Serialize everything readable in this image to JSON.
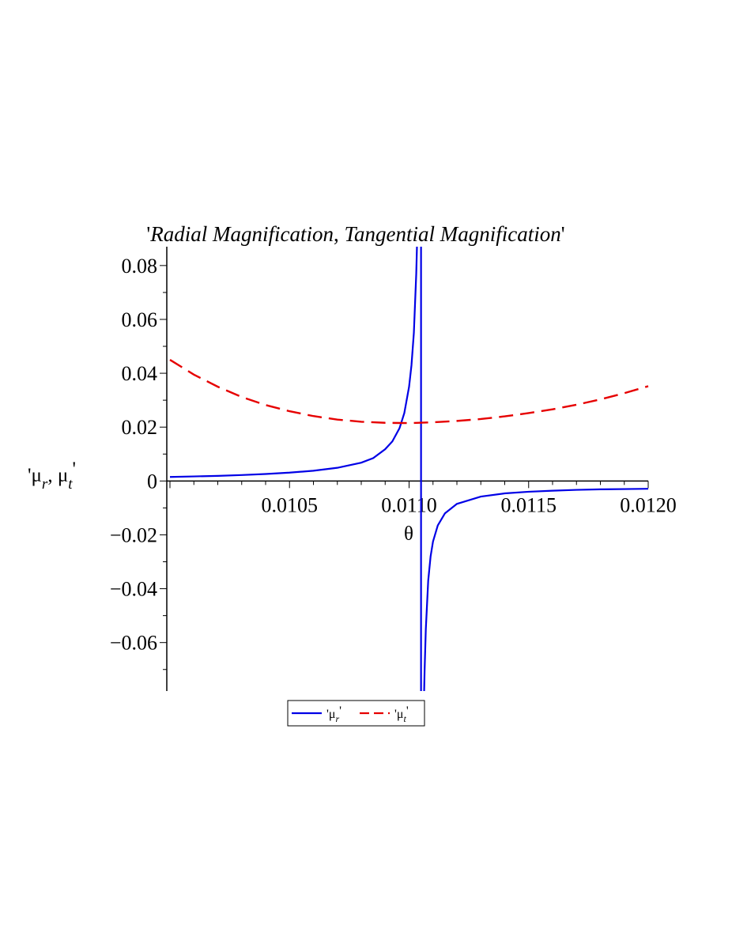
{
  "chart_data": {
    "type": "line",
    "title_parts": [
      {
        "text": "'",
        "italic": false
      },
      {
        "text": "Radial Magnification",
        "italic": true
      },
      {
        "text": ", ",
        "italic": false
      },
      {
        "text": "Tangential Magnification",
        "italic": true
      },
      {
        "text": "'",
        "italic": false
      }
    ],
    "xlabel": "θ",
    "ylabel": {
      "mu": "μ",
      "sub_r": "r",
      "sub_t": "t",
      "sep": ", ",
      "quote": "'"
    },
    "xlim": [
      0.01,
      0.012
    ],
    "ylim": [
      -0.078,
      0.087
    ],
    "x_ticks": [
      {
        "value": 0.0105,
        "label": "0.0105"
      },
      {
        "value": 0.011,
        "label": "0.0110"
      },
      {
        "value": 0.0115,
        "label": "0.0115"
      },
      {
        "value": 0.012,
        "label": "0.0120"
      }
    ],
    "y_ticks": [
      {
        "value": 0.08,
        "label": "0.08"
      },
      {
        "value": 0.06,
        "label": "0.06"
      },
      {
        "value": 0.04,
        "label": "0.04"
      },
      {
        "value": 0.02,
        "label": "0.02"
      },
      {
        "value": 0,
        "label": "0"
      },
      {
        "value": -0.02,
        "label": "−0.02"
      },
      {
        "value": -0.04,
        "label": "−0.04"
      },
      {
        "value": -0.06,
        "label": "−0.06"
      }
    ],
    "grid": false,
    "legend_placement": "bottom-center",
    "asymptote_x": 0.01105,
    "series": [
      {
        "name_mu": "μ",
        "name_sub": "r",
        "color": "#0000e6",
        "dash": "solid",
        "x": [
          0.01,
          0.0101,
          0.0102,
          0.0103,
          0.0104,
          0.0105,
          0.0106,
          0.0107,
          0.0108,
          0.01085,
          0.0109,
          0.01093,
          0.01096,
          0.01098,
          0.011,
          0.01101,
          0.01102,
          0.01103,
          0.011035,
          0.01104,
          0.01106,
          0.011065,
          0.01107,
          0.01108,
          0.01109,
          0.0111,
          0.01112,
          0.01115,
          0.0112,
          0.0113,
          0.0114,
          0.0115,
          0.0116,
          0.0117,
          0.0118,
          0.0119,
          0.012
        ],
        "y": [
          0.0015,
          0.0017,
          0.0019,
          0.0022,
          0.0026,
          0.0031,
          0.0038,
          0.0049,
          0.0068,
          0.0085,
          0.0118,
          0.0147,
          0.0196,
          0.0252,
          0.035,
          0.043,
          0.055,
          0.077,
          0.094,
          0.14,
          -0.09,
          -0.07,
          -0.055,
          -0.037,
          -0.028,
          -0.0225,
          -0.0165,
          -0.012,
          -0.0085,
          -0.0058,
          -0.0046,
          -0.004,
          -0.0036,
          -0.0033,
          -0.0031,
          -0.003,
          -0.0029
        ]
      },
      {
        "name_mu": "μ",
        "name_sub": "t",
        "color": "#e60000",
        "dash": "dashed",
        "x": [
          0.01,
          0.0101,
          0.0102,
          0.0103,
          0.0104,
          0.0105,
          0.0106,
          0.0107,
          0.0108,
          0.0109,
          0.011,
          0.0111,
          0.0112,
          0.0113,
          0.0114,
          0.0115,
          0.0116,
          0.0117,
          0.0118,
          0.0119,
          0.012
        ],
        "y": [
          0.045,
          0.0395,
          0.035,
          0.0312,
          0.0282,
          0.0259,
          0.0241,
          0.0228,
          0.022,
          0.0216,
          0.0215,
          0.0218,
          0.0223,
          0.023,
          0.024,
          0.0252,
          0.0266,
          0.0283,
          0.0303,
          0.0326,
          0.0352
        ]
      }
    ]
  }
}
